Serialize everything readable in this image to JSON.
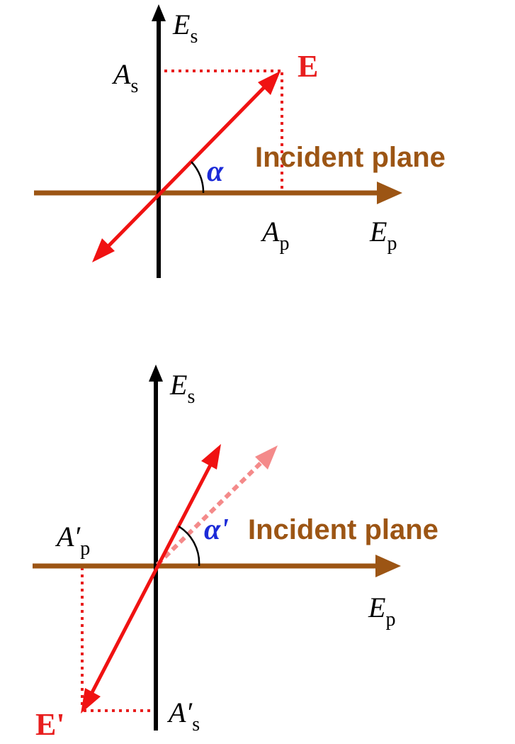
{
  "colors": {
    "axis_vertical": "#000000",
    "axis_horizontal": "#9C5514",
    "field_vector": "#F01212",
    "field_ghost": "#F48A8A",
    "projection": "#E81E1E",
    "angle_label": "#1C2BD8",
    "plane_label": "#9C5514"
  },
  "top_diagram": {
    "vertical_axis": {
      "symbol": "E",
      "subscript": "s"
    },
    "horizontal_axis": {
      "symbol": "E",
      "subscript": "p"
    },
    "vertical_component": {
      "symbol": "A",
      "subscript": "s"
    },
    "horizontal_component": {
      "symbol": "A",
      "subscript": "p"
    },
    "vector_label": "E",
    "angle_label": "α",
    "plane_label": "Incident plane"
  },
  "bottom_diagram": {
    "vertical_axis": {
      "symbol": "E",
      "subscript": "s"
    },
    "horizontal_axis": {
      "symbol": "E",
      "subscript": "p"
    },
    "vertical_component": {
      "symbol": "A′",
      "subscript": "s"
    },
    "horizontal_component": {
      "symbol": "A′",
      "subscript": "p"
    },
    "vector_label": "E'",
    "angle_label": "α'",
    "plane_label": "Incident plane"
  }
}
